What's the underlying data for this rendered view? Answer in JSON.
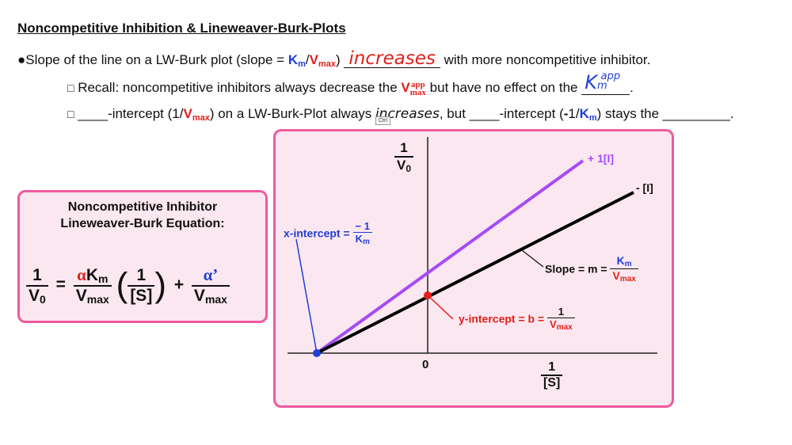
{
  "header": {
    "title": "Noncompetitive Inhibition & Lineweaver-Burk-Plots"
  },
  "bullet1": {
    "marker": "●",
    "text_a": "Slope of the line on a LW-Burk plot (slope = ",
    "km": "K",
    "km_sub": "m",
    "slash": "/",
    "vmax": "V",
    "vmax_sub": "max",
    "close": ")",
    "answer": "increases",
    "text_b": " with more noncompetitive inhibitor."
  },
  "bullet2": {
    "marker": "□",
    "text_a": "Recall: noncompetitive inhibitors always decrease the ",
    "v": "V",
    "sup": "app",
    "sub": "max",
    "text_b": " but have no effect on the",
    "answer_main": "K",
    "answer_sub": "m",
    "answer_sup": "app",
    "end": "."
  },
  "bullet3": {
    "marker": "□",
    "blank1": "____",
    "text_a": "-intercept (1/",
    "vmax": "V",
    "vmax_sub": "max",
    "text_b": ") on a LW-Burk-Plot always ",
    "answer": "increases",
    "text_c": ", but ",
    "blank2": "____",
    "text_d": "-intercept (",
    "neg": "-",
    "one": "1/",
    "km": "K",
    "km_sub": "m",
    "text_e": ") stays the ",
    "blank3": "_________",
    "end": "."
  },
  "cursor_tooltip": "Ctrl",
  "equation_box": {
    "title_line1": "Noncompetitive Inhibitor",
    "title_line2": "Lineweaver-Burk Equation:",
    "lhs_num": "1",
    "lhs_den_v": "V",
    "lhs_den_sub": "0",
    "equals": "=",
    "alpha": "α",
    "km": "K",
    "km_sub": "m",
    "vmax": "V",
    "vmax_sub": "max",
    "paren_num": "1",
    "paren_den": "[S]",
    "plus": "+",
    "alpha_prime": "α’",
    "vmax2": "V",
    "vmax2_sub": "max"
  },
  "plot": {
    "y_axis_num": "1",
    "y_axis_den": "V",
    "y_axis_den_sub": "0",
    "x_axis_num": "1",
    "x_axis_den": "[S]",
    "origin": "0",
    "line_inhibited": "+ 1[I]",
    "line_uninhibited": "- [I]",
    "x_intercept_label": "x-intercept = ",
    "x_intercept_num": "− 1",
    "x_intercept_den": "K",
    "x_intercept_den_sub": "m",
    "slope_label": "Slope = m = ",
    "slope_num": "K",
    "slope_num_sub": "m",
    "slope_den": "V",
    "slope_den_sub": "max",
    "y_intercept_label": "y-intercept = b = ",
    "y_intercept_num": "1",
    "y_intercept_den": "V",
    "y_intercept_den_sub": "max",
    "colors": {
      "inhibited": "#a64bf4",
      "uninhibited": "#000000",
      "y_intercept_point": "#e0201b",
      "x_intercept_point": "#1f3fd8",
      "box_border": "#ef5a9e",
      "box_fill": "#fbe7ef"
    }
  }
}
